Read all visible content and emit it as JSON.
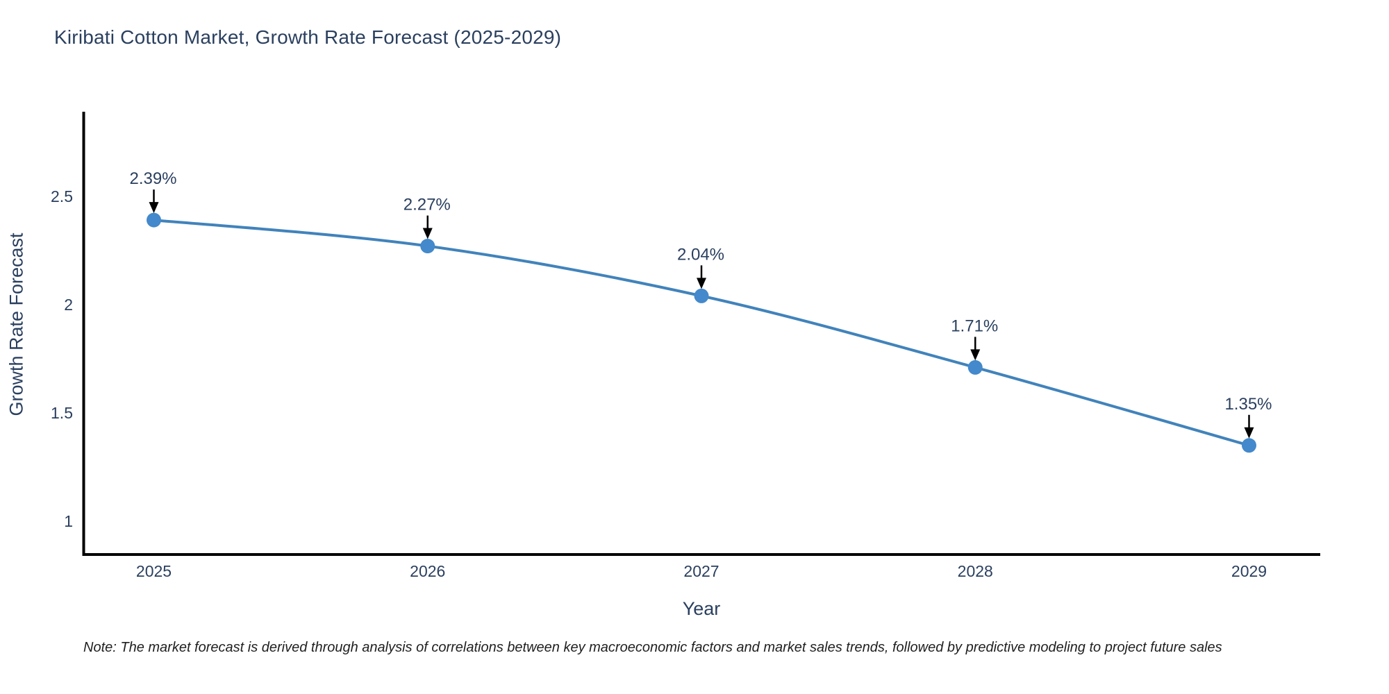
{
  "title": "Kiribati Cotton Market, Growth Rate Forecast (2025-2029)",
  "note": "Note: The market forecast is derived through analysis of correlations between key macroeconomic factors and market sales trends, followed by predictive modeling to project future sales",
  "colors": {
    "line": "#4183bb",
    "marker": "#4389cb",
    "text": "#2a3f5f",
    "axis": "#000000",
    "arrow": "#000000",
    "background": "#ffffff"
  },
  "chart_data": {
    "type": "line",
    "x": [
      2025,
      2026,
      2027,
      2028,
      2029
    ],
    "values": [
      2.39,
      2.27,
      2.04,
      1.71,
      1.35
    ],
    "point_labels": [
      "2.39%",
      "2.27%",
      "2.04%",
      "1.71%",
      "1.35%"
    ],
    "title": "Kiribati Cotton Market, Growth Rate Forecast (2025-2029)",
    "xlabel": "Year",
    "ylabel": "Growth Rate Forecast",
    "xtick_labels": [
      "2025",
      "2026",
      "2027",
      "2028",
      "2029"
    ],
    "yticks": [
      2.5,
      2,
      1.5,
      1
    ],
    "ytick_labels": [
      "2.5",
      "2",
      "1.5",
      "1"
    ],
    "xlim": [
      2024.74,
      2029.26
    ],
    "ylim": [
      0.84,
      2.89
    ],
    "grid": false,
    "legend": "none",
    "curve": "smooth",
    "annotations": "value label with down arrow above each point"
  }
}
